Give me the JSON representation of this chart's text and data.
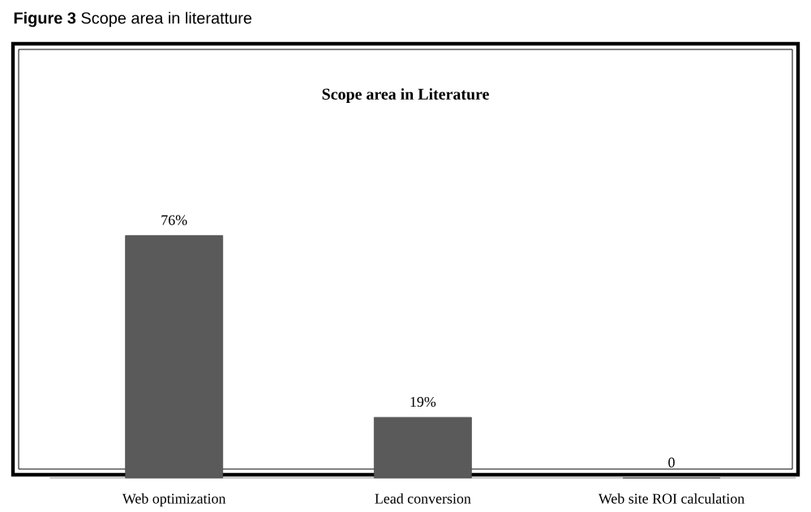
{
  "chart_data": {
    "type": "bar",
    "title": "Scope area in Literature",
    "categories": [
      "Web optimization",
      "Lead conversion",
      "Web site ROI calculation"
    ],
    "values": [
      76,
      19,
      0
    ],
    "value_labels": [
      "76%",
      "19%",
      "0"
    ],
    "color": "#5a5a5a",
    "annotations": [
      "**Figure 3** Scope area in literatture"
    ]
  }
}
